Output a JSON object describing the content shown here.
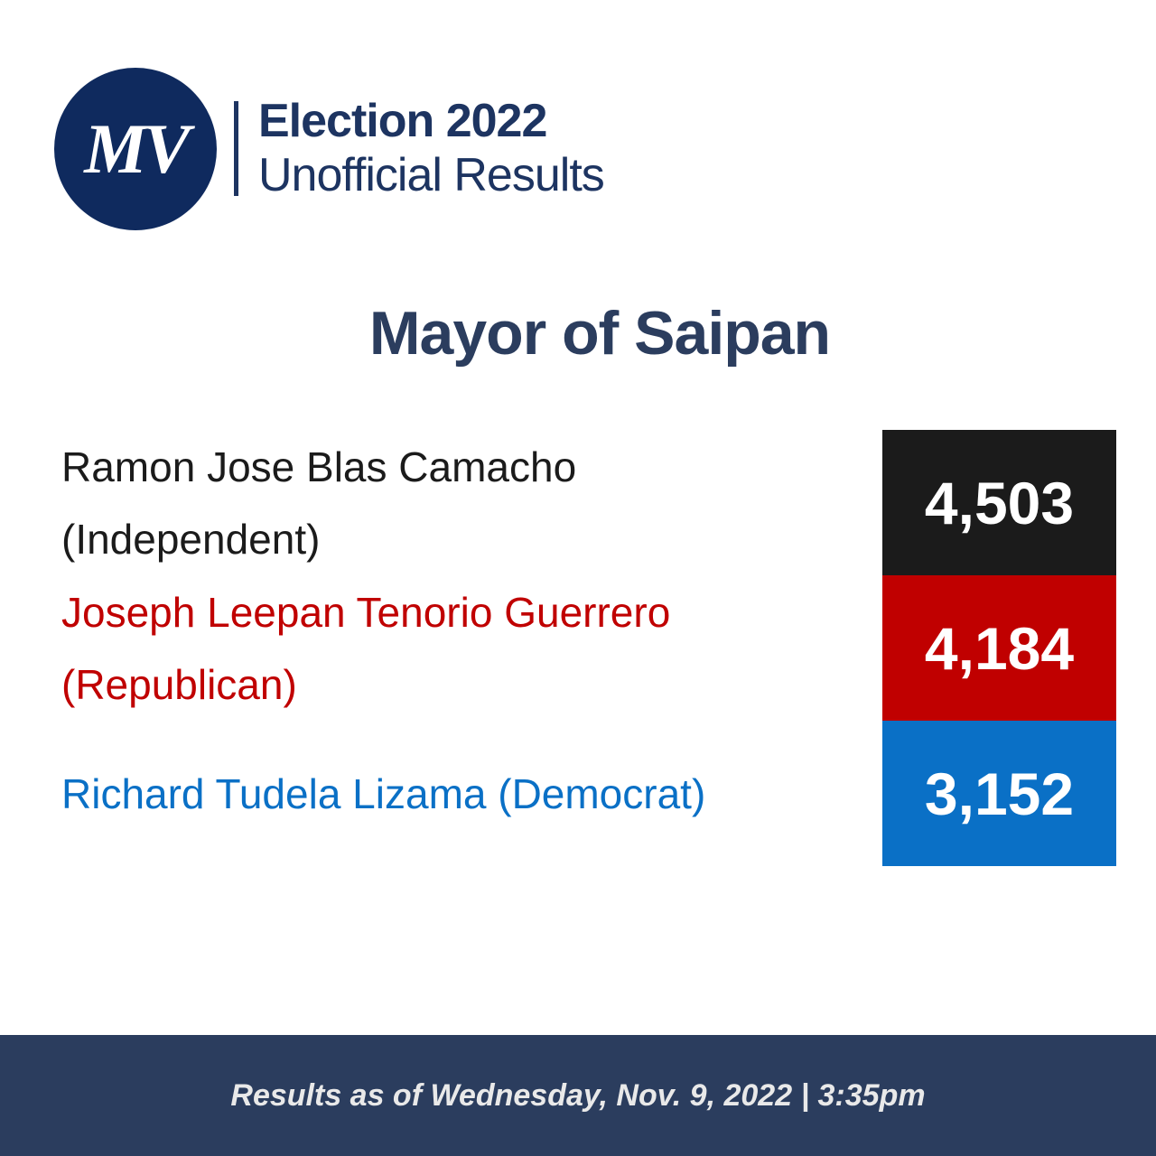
{
  "header": {
    "logo": "MV",
    "title": "Election 2022",
    "subtitle": "Unofficial Results"
  },
  "race": {
    "title": "Mayor of Saipan",
    "candidates": [
      {
        "name": "Ramon Jose Blas Camacho (Independent)",
        "votes": "4,503",
        "color": "#1b1b1b"
      },
      {
        "name": "Joseph Leepan Tenorio Guerrero (Republican)",
        "votes": "4,184",
        "color": "#c00000"
      },
      {
        "name": "Richard Tudela Lizama (Democrat)",
        "votes": "3,152",
        "color": "#0a70c6"
      }
    ]
  },
  "footer": {
    "text": "Results as of Wednesday, Nov. 9, 2022 | 3:35pm"
  }
}
